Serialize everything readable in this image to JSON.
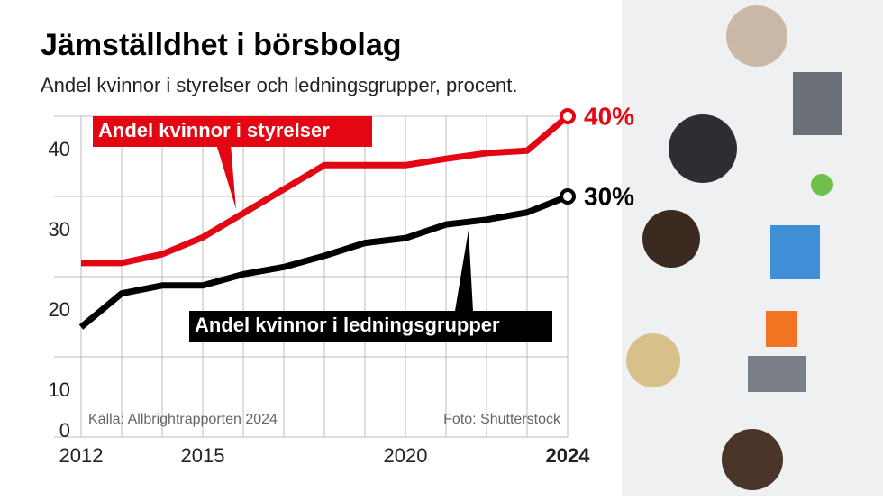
{
  "chart_data": {
    "type": "line",
    "title": "Jämställdhet i börsbolag",
    "subtitle": "Andel kvinnor i styrelser och ledningsgrupper, procent.",
    "source": "Källa: Allbrightrapporten 2024",
    "photo_credit": "Foto: Shutterstock",
    "x": [
      2012,
      2013,
      2014,
      2015,
      2016,
      2017,
      2018,
      2019,
      2020,
      2021,
      2022,
      2023,
      2024
    ],
    "xlim": [
      2012,
      2024
    ],
    "xticks": [
      2012,
      2015,
      2020,
      2024
    ],
    "ylim": [
      0,
      40
    ],
    "yticks": [
      0,
      10,
      20,
      30,
      40
    ],
    "grid": true,
    "series": [
      {
        "name": "Andel kvinnor i styrelser",
        "color": "#e30613",
        "values": [
          21.7,
          21.7,
          22.8,
          24.9,
          27.9,
          30.9,
          33.9,
          33.9,
          33.9,
          34.7,
          35.4,
          35.7,
          40
        ],
        "value_labels": [
          null,
          null,
          null,
          null,
          null,
          null,
          null,
          null,
          null,
          null,
          null,
          null,
          "40%"
        ]
      },
      {
        "name": "Andel kvinnor i ledningsgrupper",
        "color": "#000000",
        "values": [
          13.7,
          17.9,
          18.9,
          18.9,
          20.3,
          21.2,
          22.6,
          24.2,
          24.8,
          26.5,
          27.1,
          28,
          30
        ],
        "value_labels": [
          null,
          null,
          null,
          null,
          null,
          null,
          null,
          null,
          null,
          null,
          null,
          null,
          "30%"
        ]
      }
    ]
  }
}
